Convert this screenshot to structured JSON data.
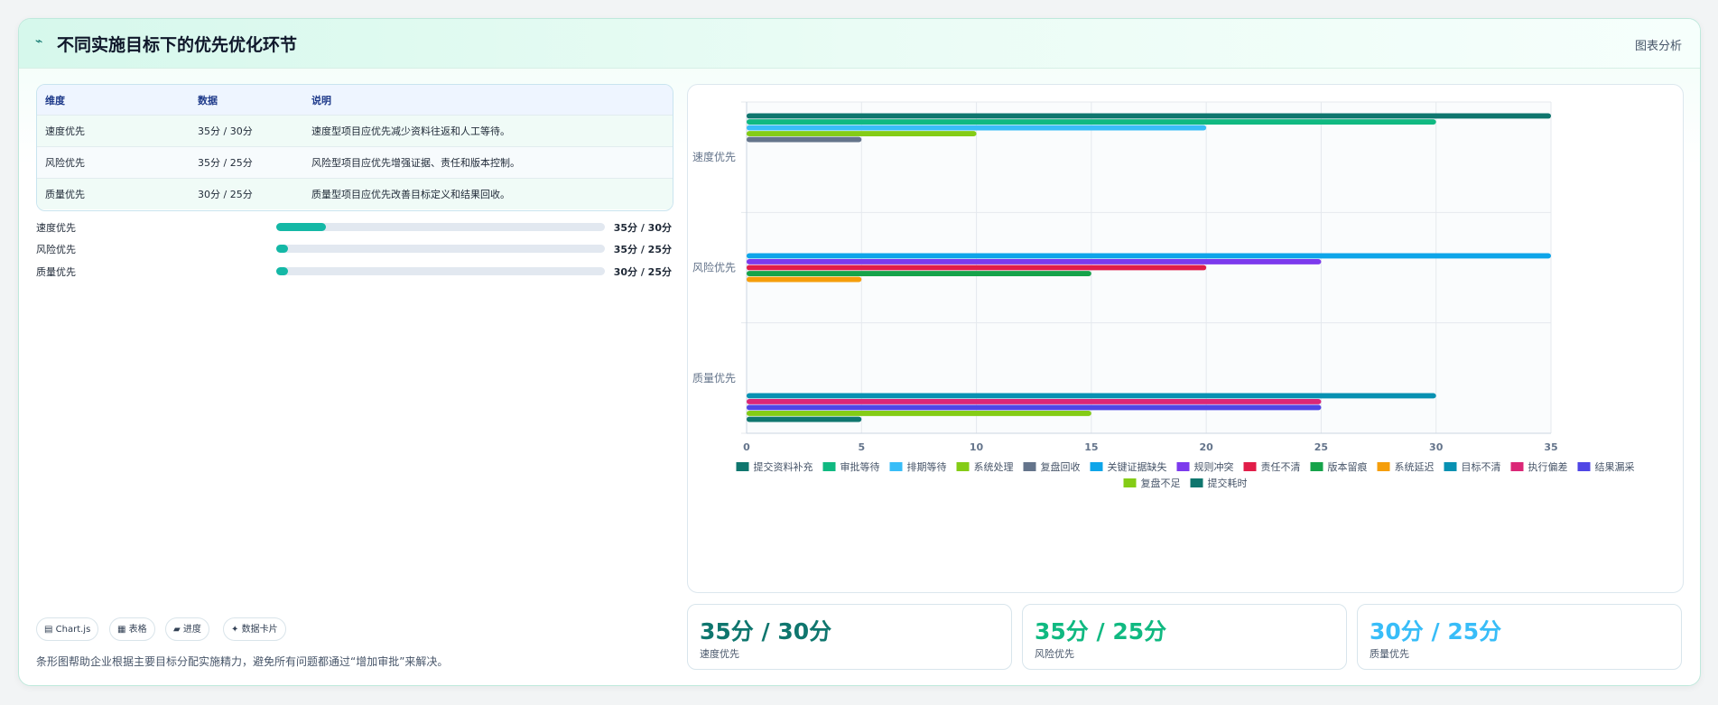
{
  "header": {
    "title": "不同实施目标下的优先优化环节",
    "right_label": "图表分析",
    "logo_icon": "sparkle-icon"
  },
  "table": {
    "headers": [
      "维度",
      "数据",
      "说明"
    ],
    "rows": [
      [
        "速度优先",
        "35分 / 30分",
        "速度型项目应优先减少资料往返和人工等待。"
      ],
      [
        "风险优先",
        "35分 / 25分",
        "风险型项目应优先增强证据、责任和版本控制。"
      ],
      [
        "质量优先",
        "30分 / 25分",
        "质量型项目应优先改善目标定义和结果回收。"
      ]
    ]
  },
  "progress": [
    {
      "label": "速度优先",
      "value": "35分 / 30分",
      "fraction": 0.15
    },
    {
      "label": "风险优先",
      "value": "35分 / 25分",
      "fraction": 0.03
    },
    {
      "label": "质量优先",
      "value": "30分 / 25分",
      "fraction": 0.03
    }
  ],
  "pills": [
    {
      "icon": "chart-icon",
      "label": "Chart.js"
    },
    {
      "icon": "table-icon",
      "label": "表格"
    },
    {
      "icon": "progress-icon",
      "label": "进度"
    },
    {
      "icon": "sparkle-icon",
      "label": "数据卡片"
    }
  ],
  "caption": "条形图帮助企业根据主要目标分配实施精力，避免所有问题都通过“增加审批”来解决。",
  "stats": [
    {
      "value": "35分 / 30分",
      "label": "速度优先",
      "color": "#0f766e"
    },
    {
      "value": "35分 / 25分",
      "label": "风险优先",
      "color": "#10b981"
    },
    {
      "value": "30分 / 25分",
      "label": "质量优先",
      "color": "#38bdf8"
    }
  ],
  "chart_data": {
    "type": "bar",
    "orientation": "horizontal",
    "categories": [
      "速度优先",
      "风险优先",
      "质量优先"
    ],
    "xlim": [
      0,
      35
    ],
    "xticks": [
      0,
      5,
      10,
      15,
      20,
      25,
      30,
      35
    ],
    "grid": true,
    "legend_position": "bottom",
    "series": [
      {
        "name": "提交资料补充",
        "color": "#0f766e",
        "values": [
          35,
          null,
          null
        ]
      },
      {
        "name": "审批等待",
        "color": "#10b981",
        "values": [
          30,
          null,
          null
        ]
      },
      {
        "name": "排期等待",
        "color": "#38bdf8",
        "values": [
          20,
          null,
          null
        ]
      },
      {
        "name": "系统处理",
        "color": "#84cc16",
        "values": [
          10,
          null,
          null
        ]
      },
      {
        "name": "复盘回收",
        "color": "#64748b",
        "values": [
          5,
          null,
          null
        ]
      },
      {
        "name": "关键证据缺失",
        "color": "#0ea5e9",
        "values": [
          null,
          35,
          null
        ]
      },
      {
        "name": "规则冲突",
        "color": "#7c3aed",
        "values": [
          null,
          25,
          null
        ]
      },
      {
        "name": "责任不清",
        "color": "#e11d48",
        "values": [
          null,
          20,
          null
        ]
      },
      {
        "name": "版本留痕",
        "color": "#16a34a",
        "values": [
          null,
          15,
          null
        ]
      },
      {
        "name": "系统延迟",
        "color": "#f59e0b",
        "values": [
          null,
          5,
          null
        ]
      },
      {
        "name": "目标不清",
        "color": "#0891b2",
        "values": [
          null,
          null,
          30
        ]
      },
      {
        "name": "执行偏差",
        "color": "#db2777",
        "values": [
          null,
          null,
          25
        ]
      },
      {
        "name": "结果漏采",
        "color": "#4f46e5",
        "values": [
          null,
          null,
          25
        ]
      },
      {
        "name": "复盘不足",
        "color": "#84cc16",
        "values": [
          null,
          null,
          15
        ]
      },
      {
        "name": "提交耗时",
        "color": "#0f766e",
        "values": [
          null,
          null,
          5
        ]
      }
    ]
  }
}
